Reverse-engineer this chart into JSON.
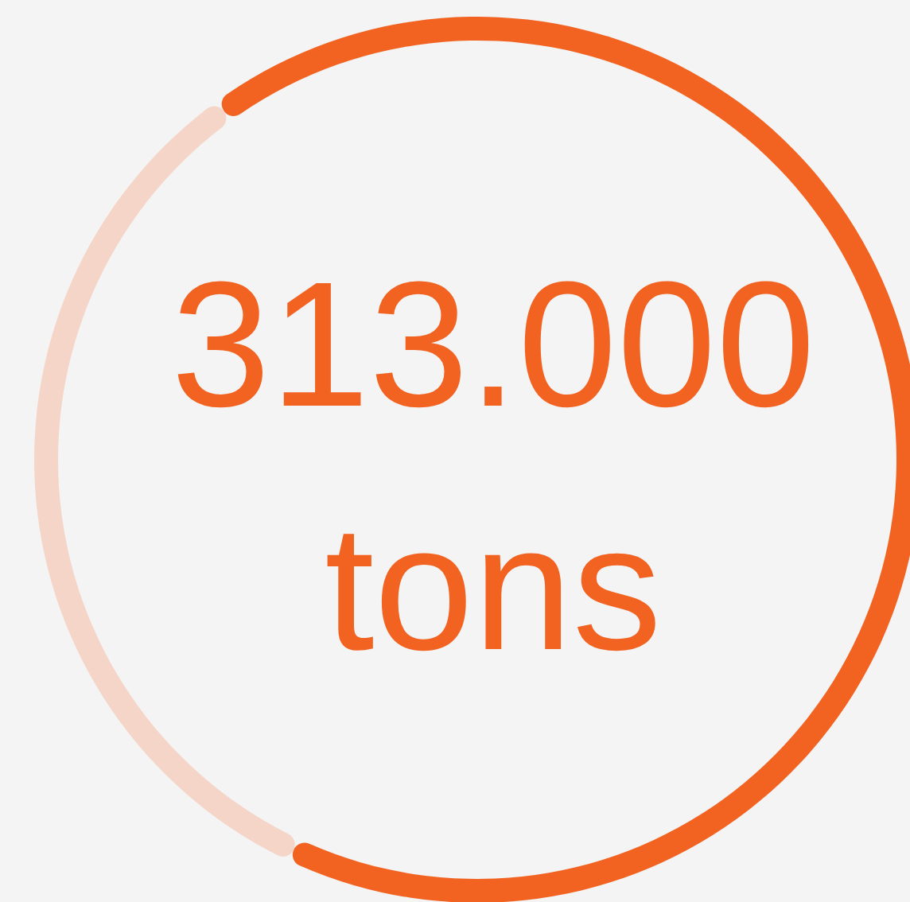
{
  "chart_data": {
    "type": "donut",
    "categories": [
      null,
      null
    ],
    "values": [
      67,
      33
    ],
    "colors": [
      "#f26322",
      "#f5d5c8"
    ],
    "annotations": [
      "313.000",
      "tons"
    ]
  }
}
